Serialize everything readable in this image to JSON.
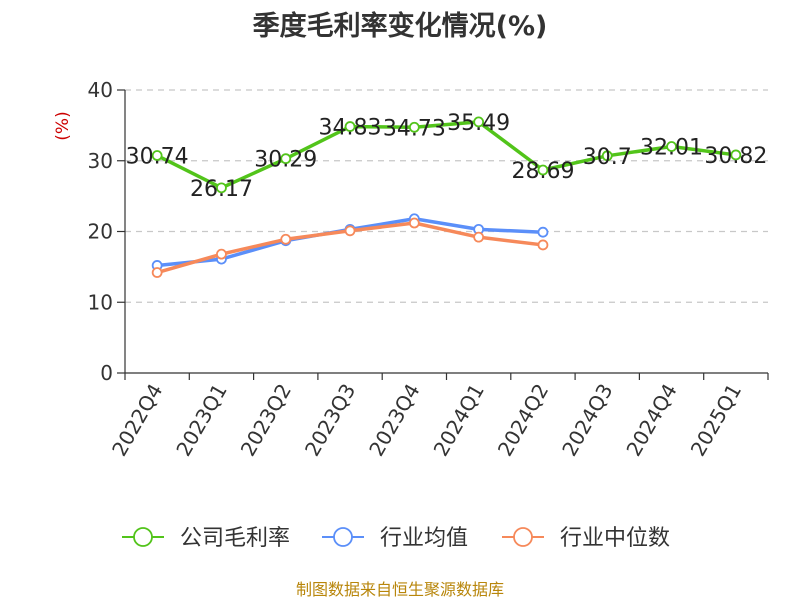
{
  "page": {
    "title": "季度毛利率变化情况(%)",
    "source": "制图数据来自恒生聚源数据库"
  },
  "chart_data": {
    "type": "line",
    "title": "季度毛利率变化情况(%)",
    "ylabel": "(%)",
    "xlabel": "",
    "ylim": [
      0,
      40
    ],
    "yticks": [
      0,
      10,
      20,
      30,
      40
    ],
    "grid": true,
    "legend_position": "bottom",
    "categories": [
      "2022Q4",
      "2023Q1",
      "2023Q2",
      "2023Q3",
      "2023Q4",
      "2024Q1",
      "2024Q2",
      "2024Q3",
      "2024Q4",
      "2025Q1"
    ],
    "series": [
      {
        "name": "公司毛利率",
        "color": "#52c41a",
        "values": [
          30.74,
          26.17,
          30.29,
          34.83,
          34.73,
          35.49,
          28.69,
          30.7,
          32.01,
          30.82
        ],
        "labels": [
          "30.74",
          "26.17",
          "30.29",
          "34.83",
          "34.73",
          "35.49",
          "28.69",
          "30.7",
          "32.01",
          "30.82"
        ]
      },
      {
        "name": "行业均值",
        "color": "#5b8ff9",
        "values": [
          15.2,
          16.1,
          18.7,
          20.3,
          21.8,
          20.3,
          19.9,
          null,
          null,
          null
        ]
      },
      {
        "name": "行业中位数",
        "color": "#f6895a",
        "values": [
          14.2,
          16.8,
          18.9,
          20.1,
          21.2,
          19.2,
          18.1,
          null,
          null,
          null
        ]
      }
    ]
  }
}
